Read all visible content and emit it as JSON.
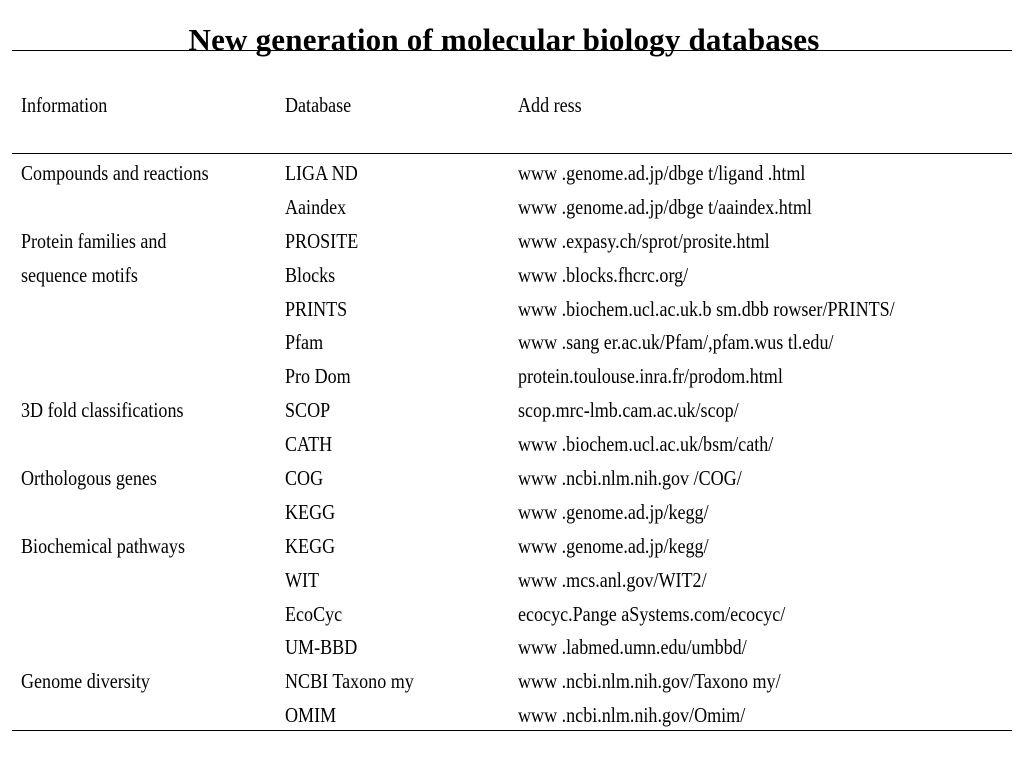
{
  "title": "New generation of molecular biology databases",
  "headers": {
    "information": "Information",
    "database": "Database",
    "address": "Add ress"
  },
  "rows": [
    {
      "info": "Compounds and reactions",
      "db": "LIGA ND",
      "addr": "www .genome.ad.jp/dbge t/ligand .html"
    },
    {
      "info": "",
      "db": "Aaindex",
      "addr": "www .genome.ad.jp/dbge t/aaindex.html"
    },
    {
      "info": "Protein families and",
      "db": "PROSITE",
      "addr": "www .expasy.ch/sprot/prosite.html"
    },
    {
      "info": "sequence motifs",
      "db": "Blocks",
      "addr": "www .blocks.fhcrc.org/"
    },
    {
      "info": "",
      "db": "PRINTS",
      "addr": "www .biochem.ucl.ac.uk.b sm.dbb rowser/PRINTS/"
    },
    {
      "info": "",
      "db": "Pfam",
      "addr": "www .sang er.ac.uk/Pfam/,pfam.wus tl.edu/"
    },
    {
      "info": "",
      "db": "Pro Dom",
      "addr": "protein.toulouse.inra.fr/prodom.html"
    },
    {
      "info": "3D fold classifications",
      "db": "SCOP",
      "addr": "scop.mrc-lmb.cam.ac.uk/scop/"
    },
    {
      "info": "",
      "db": "CATH",
      "addr": "www .biochem.ucl.ac.uk/bsm/cath/"
    },
    {
      "info": "Orthologous genes",
      "db": "COG",
      "addr": "www .ncbi.nlm.nih.gov /COG/"
    },
    {
      "info": "",
      "db": "KEGG",
      "addr": "www .genome.ad.jp/kegg/"
    },
    {
      "info": "Biochemical pathways",
      "db": "KEGG",
      "addr": "www .genome.ad.jp/kegg/"
    },
    {
      "info": "",
      "db": "WIT",
      "addr": "www .mcs.anl.gov/WIT2/"
    },
    {
      "info": "",
      "db": "EcoCyc",
      "addr": "ecocyc.Pange aSystems.com/ecocyc/"
    },
    {
      "info": "",
      "db": "UM-BBD",
      "addr": "www .labmed.umn.edu/umbbd/"
    },
    {
      "info": "Genome diversity",
      "db": "NCBI Taxono my",
      "addr": "www .ncbi.nlm.nih.gov/Taxono my/"
    },
    {
      "info": "",
      "db": "OMIM",
      "addr": "www .ncbi.nlm.nih.gov/Omim/"
    }
  ]
}
